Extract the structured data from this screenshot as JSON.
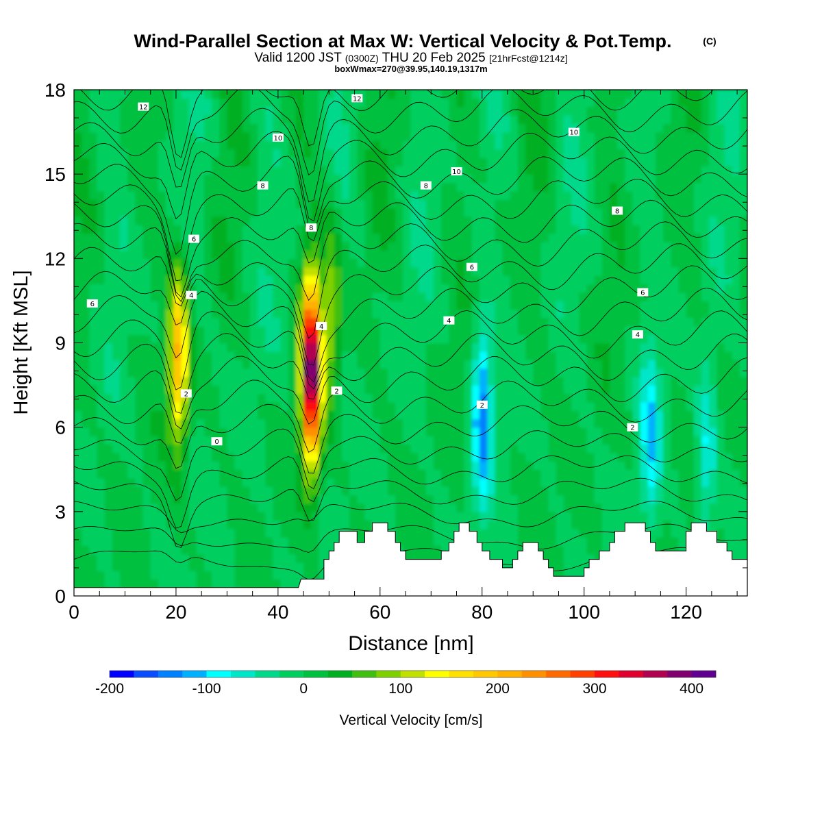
{
  "chart_data": {
    "type": "heatmap",
    "title": "Wind-Parallel Section at Max W: Vertical Velocity & Pot.Temp.",
    "title_mark": "(C)",
    "subtitle_main_a": "Valid 1200 JST",
    "subtitle_small_a": "(0300Z)",
    "subtitle_main_b": "THU 20 Feb 2025",
    "subtitle_small_b": "[21hrFcst@1214z]",
    "subtitle_line3": "boxWmax=270@39.95,140.19,1317m",
    "xlabel": "Distance [nm]",
    "ylabel": "Height [Kft MSL]",
    "xlim": [
      0,
      132
    ],
    "ylim": [
      0,
      18
    ],
    "x_ticks": [
      "0",
      "20",
      "40",
      "60",
      "80",
      "100",
      "120"
    ],
    "y_ticks": [
      "0",
      "3",
      "6",
      "9",
      "12",
      "15",
      "18"
    ],
    "colorbar": {
      "label": "Vertical Velocity [cm/s]",
      "range": [
        -200,
        425
      ],
      "step": 25,
      "tick_labels": [
        "-200",
        "-100",
        "0",
        "100",
        "200",
        "300",
        "400"
      ],
      "colors": [
        "#0000ff",
        "#0a4dff",
        "#0080ff",
        "#00b0ff",
        "#00ffff",
        "#00e6c8",
        "#00d98c",
        "#00cf60",
        "#00c040",
        "#00b020",
        "#40bf10",
        "#80d000",
        "#c0e000",
        "#ffff00",
        "#ffe000",
        "#ffc800",
        "#ffb000",
        "#ff9000",
        "#ff6a00",
        "#ff4000",
        "#ff1010",
        "#e00030",
        "#b00050",
        "#800070",
        "#600090"
      ]
    },
    "updrafts": [
      {
        "x": 20.5,
        "y": 8.5,
        "peak_cms": 200
      },
      {
        "x": 46.5,
        "y": 8.0,
        "peak_cms": 410
      },
      {
        "x": 50.5,
        "y": 10.0,
        "peak_cms": 90
      },
      {
        "x": 80.0,
        "y": 6.5,
        "peak_cms": -140
      },
      {
        "x": 113.0,
        "y": 5.5,
        "peak_cms": -90
      },
      {
        "x": 124.0,
        "y": 5.0,
        "peak_cms": -80
      }
    ],
    "theta_contour_labels": [
      "0",
      "2",
      "4",
      "6",
      "8",
      "10",
      "12"
    ],
    "terrain_kft": [
      [
        0,
        0.3
      ],
      [
        44,
        0.3
      ],
      [
        44.5,
        0.6
      ],
      [
        49,
        0.6
      ],
      [
        49,
        1.3
      ],
      [
        50,
        1.3
      ],
      [
        50,
        1.6
      ],
      [
        51,
        1.6
      ],
      [
        51,
        1.9
      ],
      [
        52,
        1.9
      ],
      [
        52,
        2.3
      ],
      [
        55.5,
        2.3
      ],
      [
        55.5,
        1.9
      ],
      [
        57,
        1.9
      ],
      [
        57,
        2.3
      ],
      [
        58.5,
        2.3
      ],
      [
        58.5,
        2.6
      ],
      [
        61.5,
        2.6
      ],
      [
        61.5,
        2.3
      ],
      [
        63,
        2.3
      ],
      [
        63,
        1.9
      ],
      [
        64,
        1.9
      ],
      [
        64,
        1.6
      ],
      [
        65,
        1.6
      ],
      [
        65,
        1.3
      ],
      [
        72,
        1.3
      ],
      [
        72,
        1.6
      ],
      [
        73.5,
        1.6
      ],
      [
        73.5,
        1.9
      ],
      [
        74.5,
        1.9
      ],
      [
        74.5,
        2.3
      ],
      [
        75.5,
        2.3
      ],
      [
        75.5,
        2.6
      ],
      [
        77.5,
        2.6
      ],
      [
        77.5,
        2.3
      ],
      [
        79,
        2.3
      ],
      [
        79,
        1.9
      ],
      [
        80,
        1.9
      ],
      [
        80,
        1.6
      ],
      [
        81.5,
        1.6
      ],
      [
        81.5,
        1.3
      ],
      [
        84,
        1.3
      ],
      [
        84,
        1.0
      ],
      [
        86,
        1.0
      ],
      [
        86,
        1.3
      ],
      [
        87,
        1.3
      ],
      [
        87,
        1.6
      ],
      [
        88,
        1.6
      ],
      [
        88,
        1.9
      ],
      [
        91,
        1.9
      ],
      [
        91,
        1.6
      ],
      [
        92,
        1.6
      ],
      [
        92,
        1.3
      ],
      [
        93,
        1.3
      ],
      [
        93,
        1.0
      ],
      [
        94,
        1.0
      ],
      [
        94,
        0.7
      ],
      [
        100,
        0.7
      ],
      [
        100,
        1.0
      ],
      [
        101,
        1.0
      ],
      [
        101,
        1.3
      ],
      [
        103,
        1.3
      ],
      [
        103,
        1.6
      ],
      [
        105,
        1.6
      ],
      [
        105,
        1.9
      ],
      [
        106,
        1.9
      ],
      [
        106,
        2.3
      ],
      [
        108,
        2.3
      ],
      [
        108,
        2.6
      ],
      [
        112,
        2.6
      ],
      [
        112,
        2.3
      ],
      [
        113,
        2.3
      ],
      [
        113,
        1.9
      ],
      [
        114,
        1.9
      ],
      [
        114,
        1.6
      ],
      [
        120,
        1.6
      ],
      [
        120,
        2.3
      ],
      [
        121,
        2.3
      ],
      [
        121,
        2.6
      ],
      [
        124,
        2.6
      ],
      [
        124,
        2.3
      ],
      [
        126,
        2.3
      ],
      [
        126,
        1.9
      ],
      [
        128,
        1.9
      ],
      [
        128,
        1.6
      ],
      [
        129,
        1.6
      ],
      [
        129,
        1.3
      ],
      [
        132,
        1.3
      ]
    ]
  }
}
